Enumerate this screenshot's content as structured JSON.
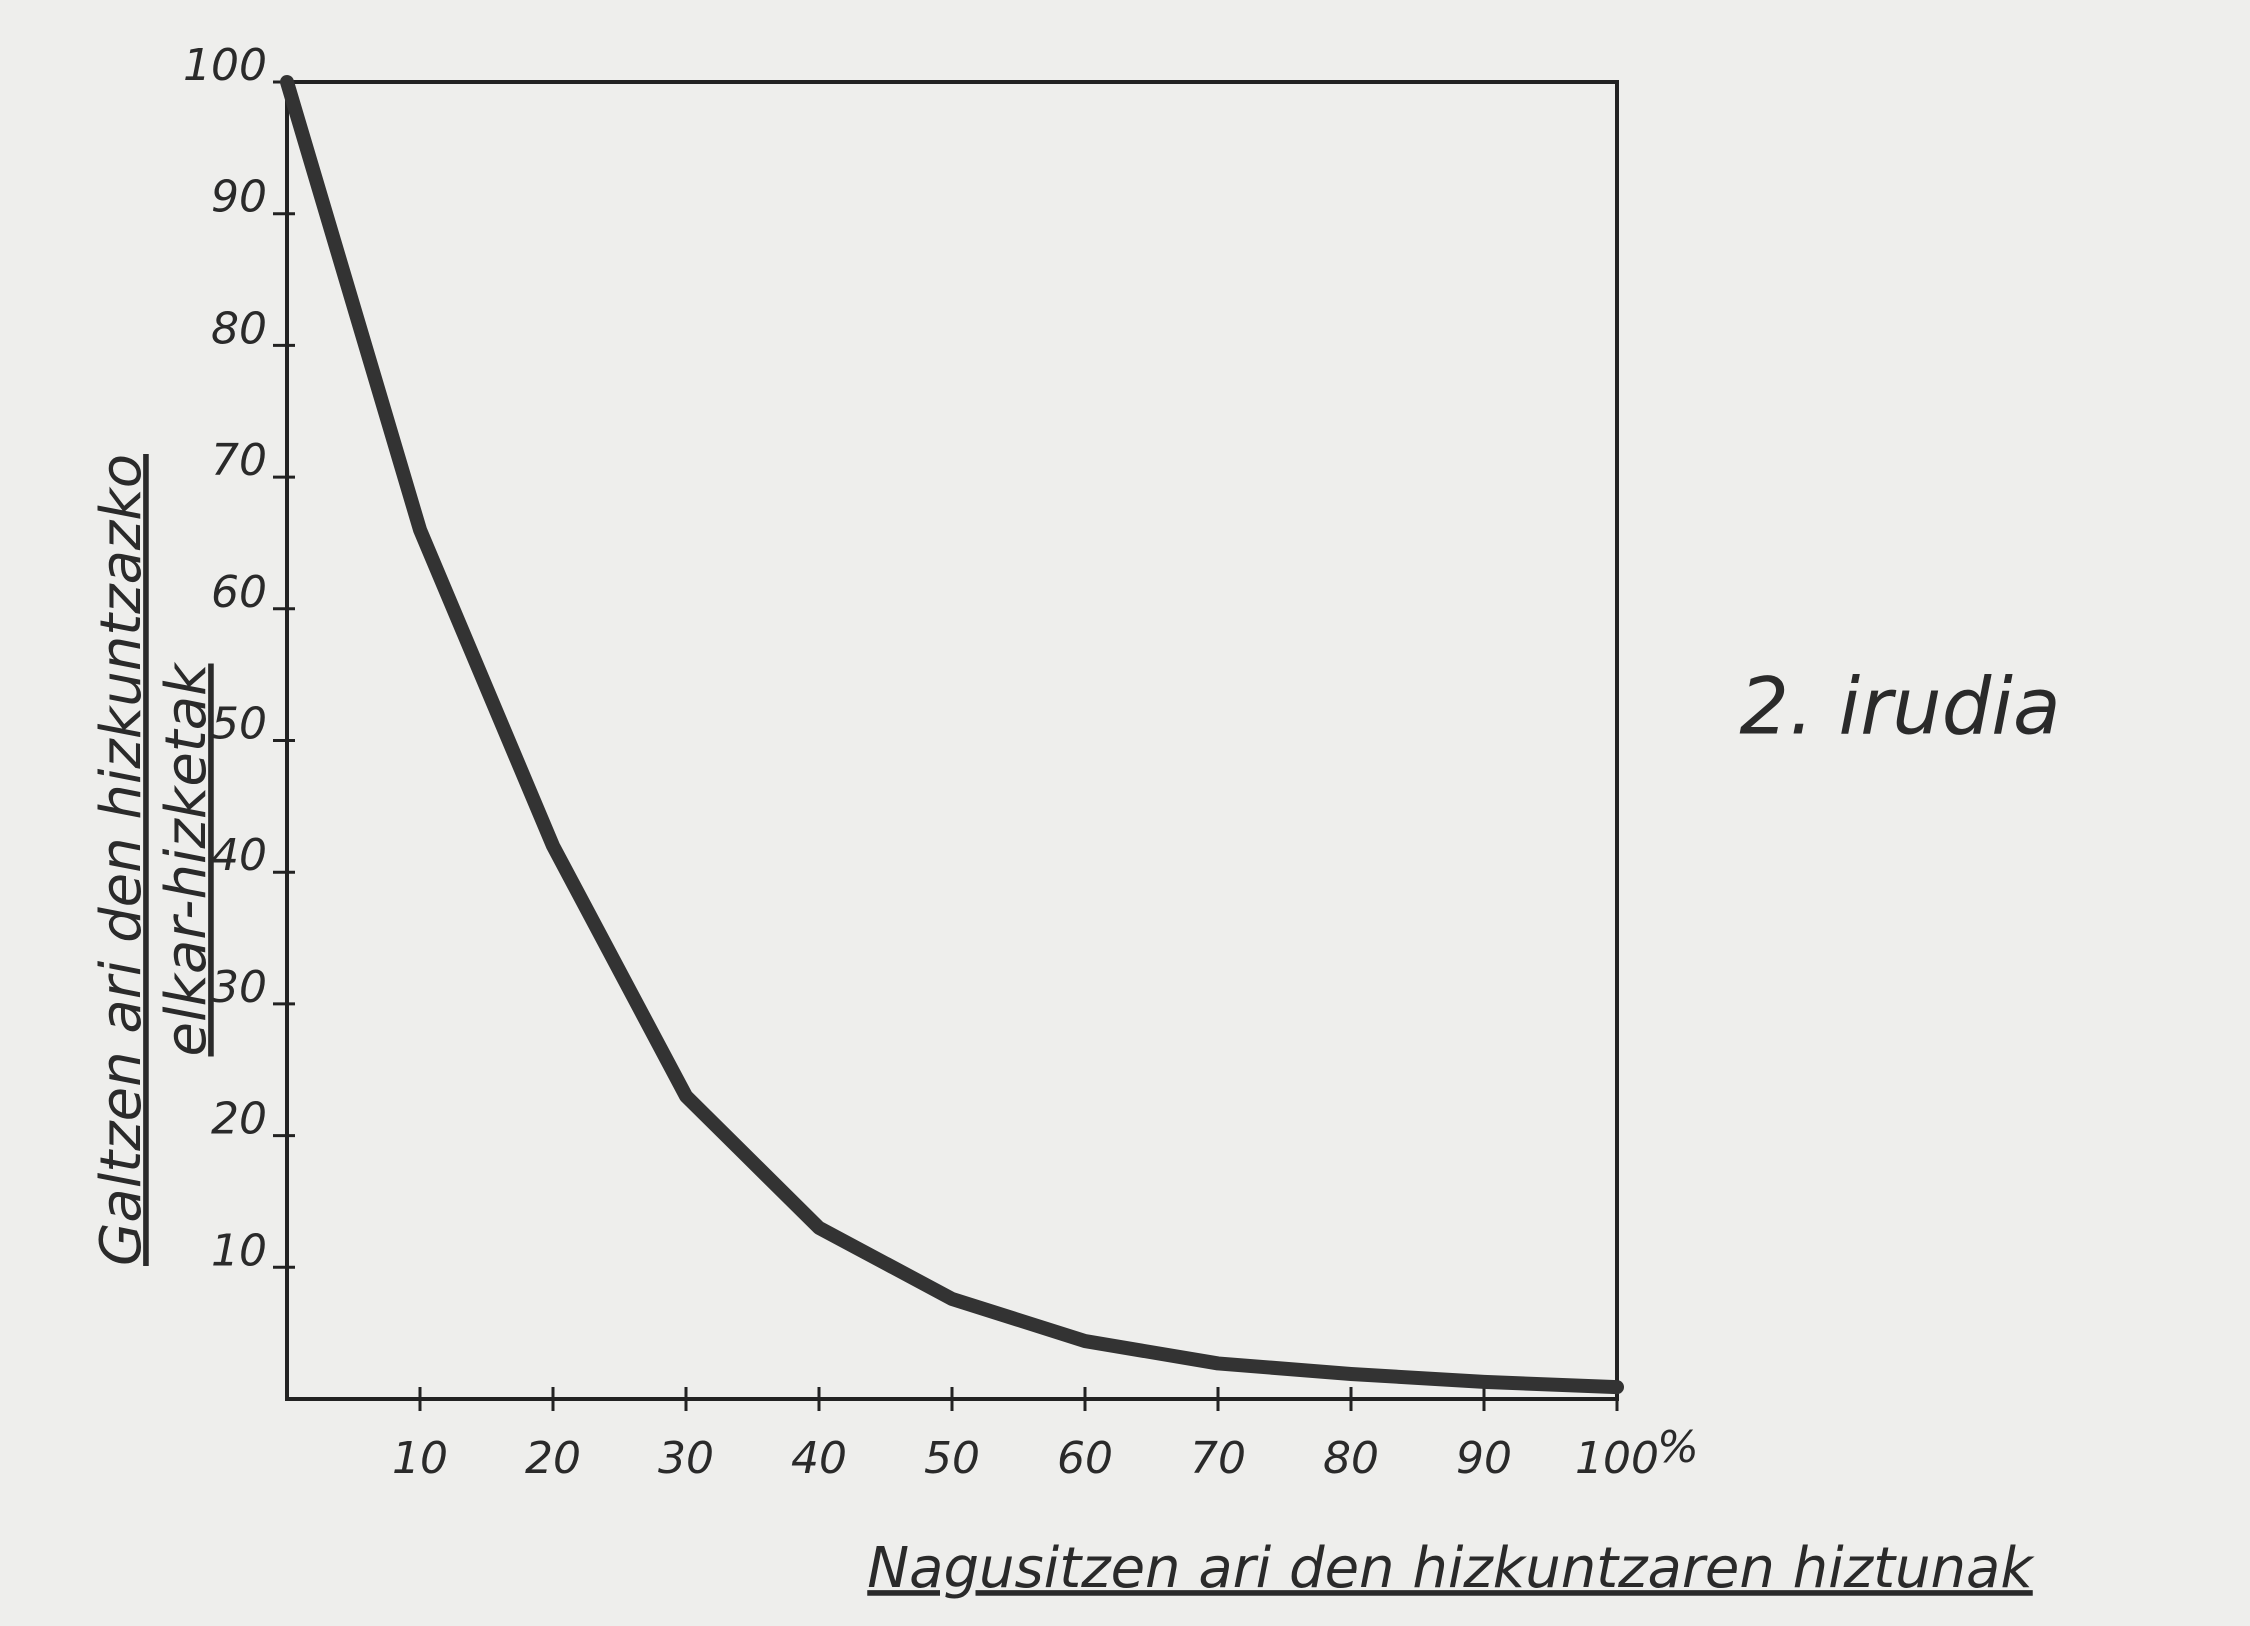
{
  "chart_data": {
    "type": "line",
    "annotation": "2. irudia",
    "x_label": "Nagusitzen ari den hizkuntzaren hiztunak",
    "x_unit": "%",
    "y_label": [
      "Galtzen ari den hizkuntzazko",
      "elkar-hizketak"
    ],
    "x": [
      0,
      10,
      20,
      30,
      40,
      50,
      60,
      70,
      80,
      90,
      100
    ],
    "series": [
      {
        "color": "#333333",
        "values": [
          100,
          66,
          42,
          23,
          13,
          7.6,
          4.4,
          2.7,
          1.9,
          1.3,
          0.9
        ]
      }
    ],
    "xlim": [
      0,
      100
    ],
    "ylim": [
      0,
      100
    ],
    "xticks": [
      10,
      20,
      30,
      40,
      50,
      60,
      70,
      80,
      90,
      100
    ],
    "yticks": [
      10,
      20,
      30,
      40,
      50,
      60,
      70,
      80,
      90,
      100
    ],
    "grid": false
  }
}
